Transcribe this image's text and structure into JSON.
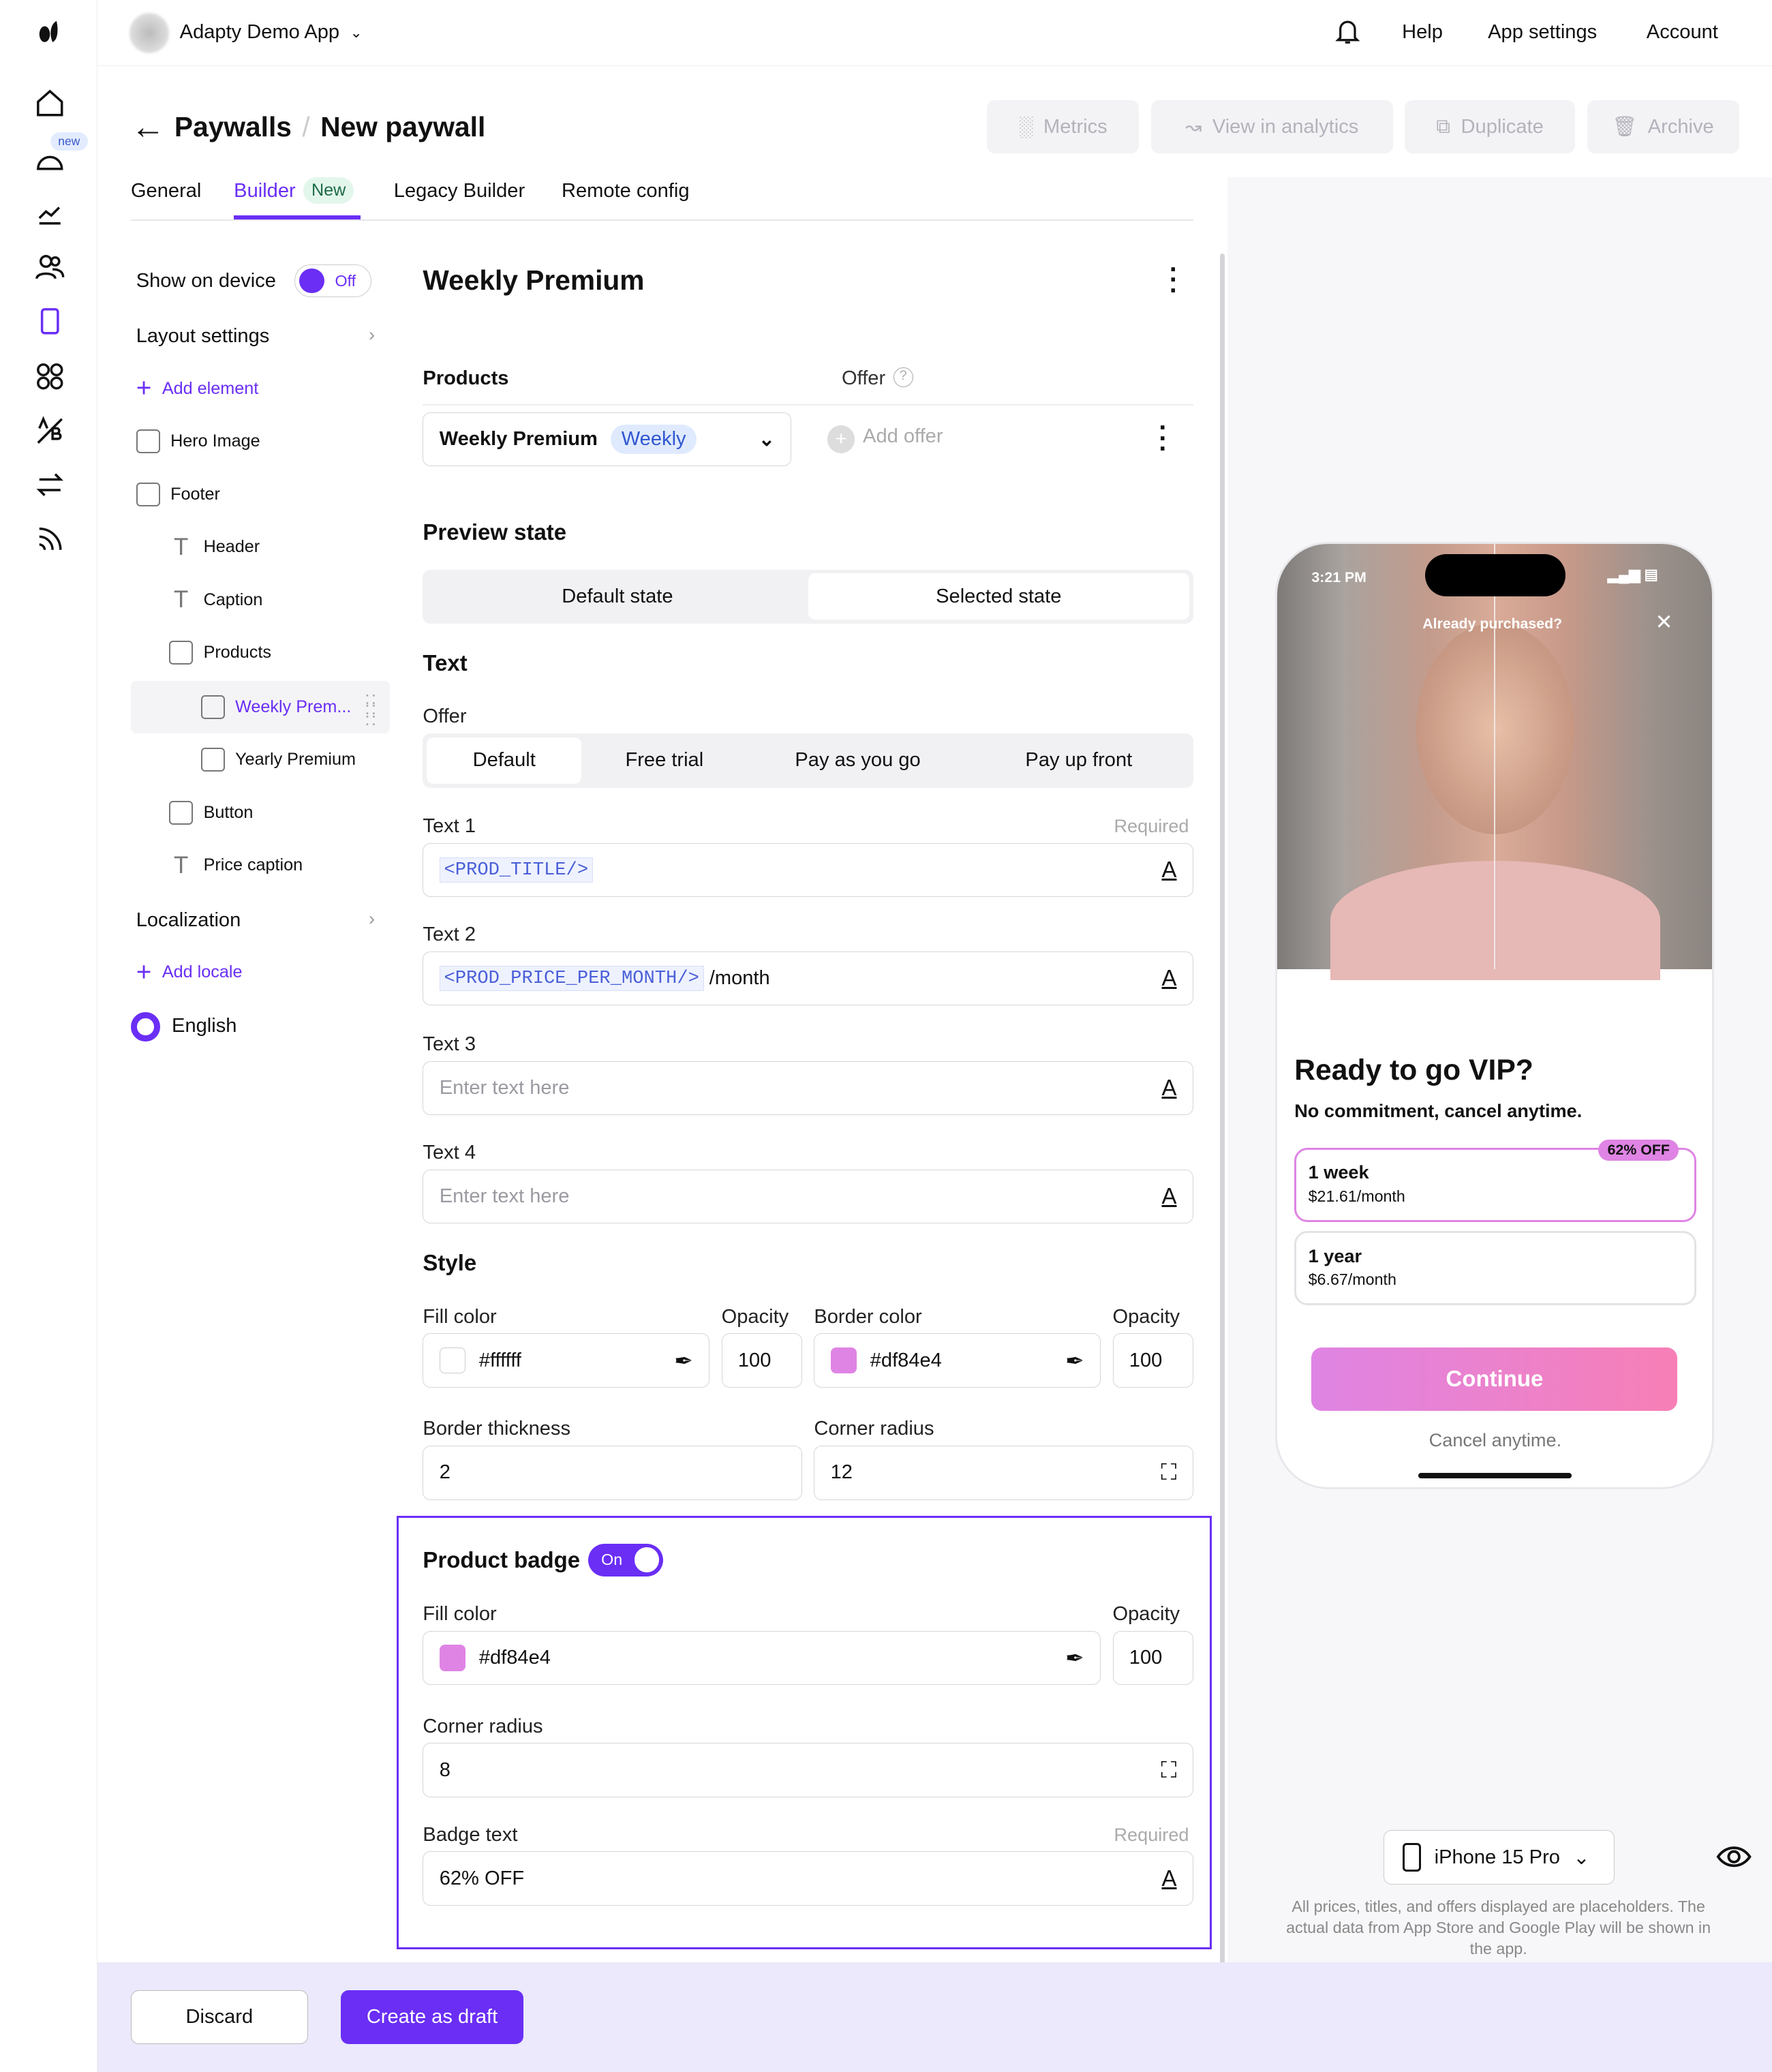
{
  "topbar": {
    "app_name": "Adapty Demo App",
    "help": "Help",
    "app_settings": "App settings",
    "account": "Account"
  },
  "rail": {
    "new_badge": "new"
  },
  "header": {
    "breadcrumb_parent": "Paywalls",
    "separator": "/",
    "title": "New paywall",
    "buttons": {
      "metrics": "Metrics",
      "analytics": "View in analytics",
      "duplicate": "Duplicate",
      "archive": "Archive"
    }
  },
  "tabs": [
    {
      "label": "General"
    },
    {
      "label": "Builder",
      "badge": "New",
      "active": true
    },
    {
      "label": "Legacy Builder"
    },
    {
      "label": "Remote config"
    }
  ],
  "tree": {
    "show_on_device": "Show on device",
    "toggle_off": "Off",
    "layout_settings": "Layout settings",
    "add_element": "Add element",
    "items": [
      "Hero Image",
      "Footer",
      "Header",
      "Caption",
      "Products",
      "Weekly Prem...",
      "Yearly Premium",
      "Button",
      "Price caption"
    ],
    "localization": "Localization",
    "add_locale": "Add locale",
    "locale": "English"
  },
  "editor": {
    "title": "Weekly Premium",
    "products_label": "Products",
    "offer_label": "Offer",
    "product_value": "Weekly Premium",
    "product_period": "Weekly",
    "add_offer": "Add offer",
    "preview_state": "Preview state",
    "states": [
      "Default state",
      "Selected state"
    ],
    "text_section": "Text",
    "offer_sub": "Offer",
    "offer_tabs": [
      "Default",
      "Free trial",
      "Pay as you go",
      "Pay up front"
    ],
    "required": "Required",
    "text1_label": "Text 1",
    "text1_token": "<PROD_TITLE/>",
    "text2_label": "Text 2",
    "text2_token": "<PROD_PRICE_PER_MONTH/>",
    "text2_suffix": " /month",
    "text3_label": "Text 3",
    "text4_label": "Text 4",
    "placeholder": "Enter text here",
    "style": "Style",
    "fill_color": "Fill color",
    "opacity": "Opacity",
    "border_color": "Border color",
    "fill_value": "#ffffff",
    "fill_opacity": "100",
    "border_value": "#df84e4",
    "border_opacity": "100",
    "border_thickness": "Border thickness",
    "border_thickness_value": "2",
    "corner_radius": "Corner radius",
    "corner_radius_value": "12",
    "badge": {
      "title": "Product badge",
      "toggle": "On",
      "fill_color": "Fill color",
      "opacity": "Opacity",
      "fill_value": "#df84e4",
      "opacity_value": "100",
      "corner_radius": "Corner radius",
      "corner_radius_value": "8",
      "badge_text": "Badge text",
      "required": "Required",
      "badge_text_value": "62% OFF"
    }
  },
  "footer": {
    "discard": "Discard",
    "create": "Create as draft"
  },
  "preview": {
    "time": "3:21 PM",
    "already": "Already purchased?",
    "headline": "Ready to go VIP?",
    "sub": "No commitment, cancel anytime.",
    "badge": "62% OFF",
    "products": [
      {
        "title": "1 week",
        "price": "$21.61/month"
      },
      {
        "title": "1 year",
        "price": "$6.67/month"
      }
    ],
    "cta": "Continue",
    "cancel": "Cancel anytime.",
    "device": "iPhone 15 Pro",
    "disclaimer": "All prices, titles, and offers displayed are placeholders. The actual data from App Store and Google Play will be shown in the app."
  },
  "colors": {
    "accent": "#6a2ef5",
    "badge_pink": "#df84e4",
    "footer_bg": "#ebe9fb"
  }
}
